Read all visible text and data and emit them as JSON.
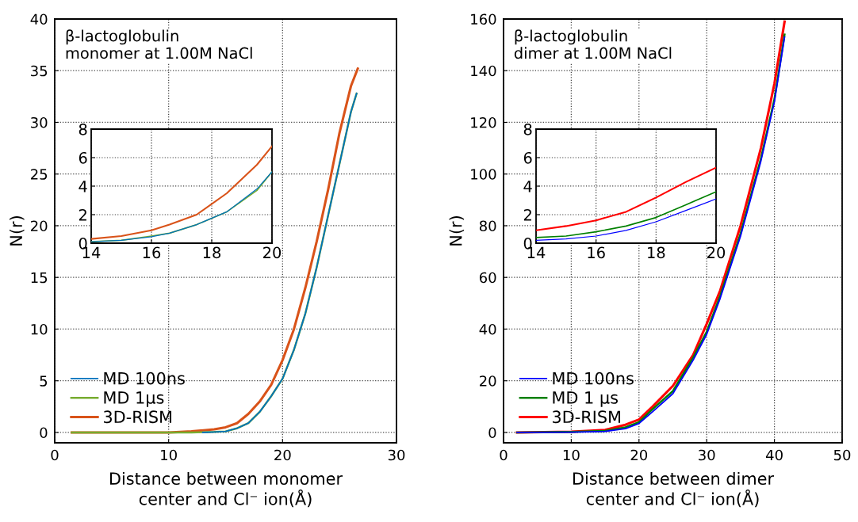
{
  "chart_data": [
    {
      "type": "line",
      "xlabel": "Distance between monomer\ncenter and Cl⁻ ion(Å)",
      "ylabel": "N(r)",
      "annotations": [
        "β-lactoglobulin\nmonomer at 1.00M NaCl"
      ],
      "xlim": [
        0,
        30
      ],
      "ylim": [
        -1,
        40
      ],
      "xticks": [
        0,
        10,
        20,
        30
      ],
      "yticks": [
        0,
        5,
        10,
        15,
        20,
        25,
        30,
        35,
        40
      ],
      "grid": true,
      "line_style": "solid",
      "legend": "bottom left",
      "series": [
        {
          "name": "MD 100ns",
          "color": "#0072bd",
          "x": [
            13,
            14,
            15,
            16,
            17,
            18,
            19,
            20,
            21,
            22,
            23,
            24,
            25,
            26,
            26.5
          ],
          "values": [
            0,
            0.05,
            0.1,
            0.4,
            0.9,
            2.0,
            3.5,
            5.2,
            8,
            11.5,
            16,
            21,
            26,
            31,
            32.8
          ]
        },
        {
          "name": "MD 1µs",
          "color": "#77ac30",
          "x": [
            1.5,
            5,
            10,
            12,
            14,
            15,
            16,
            17,
            18,
            19,
            20,
            21,
            22,
            23,
            24,
            25,
            26,
            26.5
          ],
          "values": [
            0,
            0,
            0,
            0,
            0.05,
            0.1,
            0.4,
            0.9,
            2.0,
            3.5,
            5.2,
            8,
            11.5,
            16,
            21,
            26,
            31,
            32.8
          ]
        },
        {
          "name": "3D-RISM",
          "color": "#d95319",
          "x": [
            1.5,
            5,
            10,
            12,
            14,
            15,
            16,
            17,
            18,
            19,
            20,
            21,
            22,
            23,
            24,
            25,
            26,
            26.6
          ],
          "values": [
            0,
            0,
            0,
            0.1,
            0.3,
            0.5,
            0.9,
            1.8,
            3,
            4.6,
            7,
            10,
            14,
            18.5,
            23.5,
            29,
            33.5,
            35.2
          ]
        }
      ]
    },
    {
      "type": "line",
      "xlim": [
        14,
        20
      ],
      "ylim": [
        0,
        8
      ],
      "xticks": [
        14,
        16,
        18,
        20
      ],
      "yticks": [
        0,
        2,
        4,
        6,
        8
      ],
      "grid": true,
      "line_style": "solid",
      "series": [
        {
          "color": "#0072bd",
          "x": [
            14,
            15,
            16,
            16.6,
            17.5,
            18.5,
            19.5,
            20
          ],
          "values": [
            0.1,
            0.2,
            0.45,
            0.7,
            1.3,
            2.2,
            3.8,
            5.0
          ]
        },
        {
          "color": "#77ac30",
          "x": [
            14,
            15,
            16,
            16.6,
            17.5,
            18.5,
            19.5,
            20
          ],
          "values": [
            0.1,
            0.2,
            0.5,
            0.7,
            1.3,
            2.2,
            3.7,
            5.0
          ]
        },
        {
          "color": "#d95319",
          "x": [
            14,
            15,
            16,
            16.6,
            17.5,
            18.5,
            19.5,
            20
          ],
          "values": [
            0.3,
            0.5,
            0.9,
            1.3,
            2.0,
            3.5,
            5.5,
            6.8
          ]
        }
      ]
    },
    {
      "type": "line",
      "xlabel": "Distance between dimer\ncenter and Cl⁻ ion(Å)",
      "ylabel": "N(r)",
      "annotations": [
        "β-lactoglobulin\ndimer at 1.00M NaCl"
      ],
      "xlim": [
        0,
        50
      ],
      "ylim": [
        -4,
        160
      ],
      "xticks": [
        0,
        10,
        20,
        30,
        40,
        50
      ],
      "yticks": [
        0,
        20,
        40,
        60,
        80,
        100,
        120,
        140,
        160
      ],
      "grid": true,
      "line_style": "solid",
      "legend": "bottom left",
      "series": [
        {
          "name": "MD 100ns",
          "color": "#0000ff",
          "x": [
            2,
            10,
            15,
            18,
            20,
            22,
            25,
            28,
            30,
            32,
            35,
            38,
            40,
            41.5
          ],
          "values": [
            0,
            0.1,
            0.4,
            1.5,
            3.5,
            8,
            15,
            28,
            38,
            52,
            76,
            105,
            128,
            153
          ]
        },
        {
          "name": "MD 1 µs",
          "color": "#008000",
          "x": [
            2,
            10,
            15,
            18,
            20,
            22,
            25,
            28,
            30,
            32,
            35,
            38,
            40,
            41.5
          ],
          "values": [
            0,
            0.2,
            0.6,
            2,
            4,
            9,
            16,
            29,
            39,
            53,
            77,
            106,
            129,
            154
          ]
        },
        {
          "name": "3D-RISM",
          "color": "#ff0000",
          "x": [
            2,
            10,
            15,
            18,
            20,
            22,
            25,
            28,
            30,
            32,
            35,
            38,
            40,
            41.5
          ],
          "values": [
            0,
            0.3,
            1,
            3,
            5,
            10,
            18,
            30,
            42,
            55,
            80,
            110,
            135,
            159
          ]
        }
      ]
    },
    {
      "type": "line",
      "xlim": [
        14,
        20
      ],
      "ylim": [
        0,
        8
      ],
      "xticks": [
        14,
        16,
        18,
        20
      ],
      "yticks": [
        0,
        2,
        4,
        6,
        8
      ],
      "grid": true,
      "line_style": "solid",
      "series": [
        {
          "color": "#0000ff",
          "x": [
            14,
            15,
            16,
            17,
            18,
            19,
            20
          ],
          "values": [
            0.2,
            0.3,
            0.5,
            0.9,
            1.5,
            2.3,
            3.1
          ]
        },
        {
          "color": "#008000",
          "x": [
            14,
            15,
            16,
            17,
            18,
            19,
            20
          ],
          "values": [
            0.4,
            0.5,
            0.8,
            1.2,
            1.8,
            2.7,
            3.6
          ]
        },
        {
          "color": "#ff0000",
          "x": [
            14,
            15,
            16,
            17,
            18,
            19,
            20
          ],
          "values": [
            0.9,
            1.2,
            1.6,
            2.2,
            3.2,
            4.3,
            5.3
          ]
        }
      ]
    }
  ]
}
